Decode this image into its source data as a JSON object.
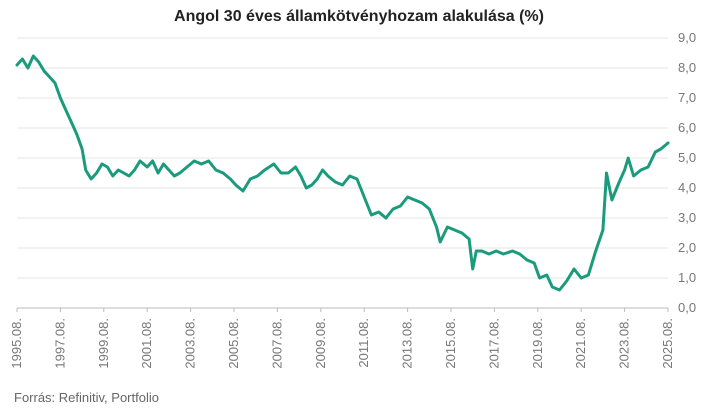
{
  "chart_data": {
    "type": "line",
    "title": "Angol 30 éves államkötvényhozam alakulása (%)",
    "source": "Forrás: Refinitiv, Portfolio",
    "xlabel": "",
    "ylabel": "",
    "ylim": [
      0,
      9
    ],
    "y_ticks": [
      "0,0",
      "1,0",
      "2,0",
      "3,0",
      "4,0",
      "5,0",
      "6,0",
      "7,0",
      "8,0",
      "9,0"
    ],
    "x_ticks": [
      "1995.08.",
      "1997.08.",
      "1999.08.",
      "2001.08.",
      "2003.08.",
      "2005.08.",
      "2007.08.",
      "2009.08.",
      "2011.08.",
      "2013.08.",
      "2015.08.",
      "2017.08.",
      "2019.08.",
      "2021.08.",
      "2023.08.",
      "2025.08."
    ],
    "grid": "horizontal",
    "legend": "none",
    "line_color": "#1a9b7c",
    "series": [
      {
        "x": [
          "1995.08.",
          "1995.11.",
          "1996.02.",
          "1996.05.",
          "1996.08.",
          "1996.11.",
          "1997.02.",
          "1997.05.",
          "1997.08.",
          "1997.11.",
          "1998.02.",
          "1998.05.",
          "1998.08.",
          "1998.10.",
          "1999.01.",
          "1999.04.",
          "1999.07.",
          "1999.10.",
          "2000.01.",
          "2000.04.",
          "2000.07.",
          "2000.10.",
          "2001.01.",
          "2001.04.",
          "2001.08.",
          "2001.11.",
          "2002.02.",
          "2002.05.",
          "2002.08.",
          "2002.11.",
          "2003.02.",
          "2003.06.",
          "2003.10.",
          "2004.02.",
          "2004.06.",
          "2004.10.",
          "2005.02.",
          "2005.06.",
          "2005.09.",
          "2006.01.",
          "2006.05.",
          "2006.09.",
          "2007.01.",
          "2007.06.",
          "2007.10.",
          "2008.02.",
          "2008.06.",
          "2008.09.",
          "2008.12.",
          "2009.03.",
          "2009.06.",
          "2009.09.",
          "2009.12.",
          "2010.04.",
          "2010.08.",
          "2010.12.",
          "2011.04.",
          "2011.08.",
          "2011.12.",
          "2012.04.",
          "2012.08.",
          "2012.12.",
          "2013.04.",
          "2013.08.",
          "2013.12.",
          "2014.04.",
          "2014.08.",
          "2014.12.",
          "2015.02.",
          "2015.06.",
          "2015.10.",
          "2016.02.",
          "2016.06.",
          "2016.08.",
          "2016.10.",
          "2017.01.",
          "2017.05.",
          "2017.09.",
          "2018.01.",
          "2018.06.",
          "2018.10.",
          "2019.02.",
          "2019.06.",
          "2019.09.",
          "2020.01.",
          "2020.04.",
          "2020.08.",
          "2020.12.",
          "2021.04.",
          "2021.08.",
          "2021.12.",
          "2022.04.",
          "2022.08.",
          "2022.10.",
          "2023.01.",
          "2023.05.",
          "2023.08.",
          "2023.10.",
          "2024.01.",
          "2024.05.",
          "2024.09.",
          "2025.01.",
          "2025.04.",
          "2025.08."
        ],
        "values": [
          8.1,
          8.3,
          8.0,
          8.4,
          8.2,
          7.9,
          7.7,
          7.5,
          7.0,
          6.6,
          6.2,
          5.8,
          5.3,
          4.6,
          4.3,
          4.5,
          4.8,
          4.7,
          4.4,
          4.6,
          4.5,
          4.4,
          4.6,
          4.9,
          4.7,
          4.9,
          4.5,
          4.8,
          4.6,
          4.4,
          4.5,
          4.7,
          4.9,
          4.8,
          4.9,
          4.6,
          4.5,
          4.3,
          4.1,
          3.9,
          4.3,
          4.4,
          4.6,
          4.8,
          4.5,
          4.5,
          4.7,
          4.4,
          4.0,
          4.1,
          4.3,
          4.6,
          4.4,
          4.2,
          4.1,
          4.4,
          4.3,
          3.7,
          3.1,
          3.2,
          3.0,
          3.3,
          3.4,
          3.7,
          3.6,
          3.5,
          3.3,
          2.7,
          2.2,
          2.7,
          2.6,
          2.5,
          2.3,
          1.3,
          1.9,
          1.9,
          1.8,
          1.9,
          1.8,
          1.9,
          1.8,
          1.6,
          1.5,
          1.0,
          1.1,
          0.7,
          0.6,
          0.9,
          1.3,
          1.0,
          1.1,
          1.9,
          2.6,
          4.5,
          3.6,
          4.2,
          4.6,
          5.0,
          4.4,
          4.6,
          4.7,
          5.2,
          5.3,
          5.5
        ]
      }
    ]
  }
}
